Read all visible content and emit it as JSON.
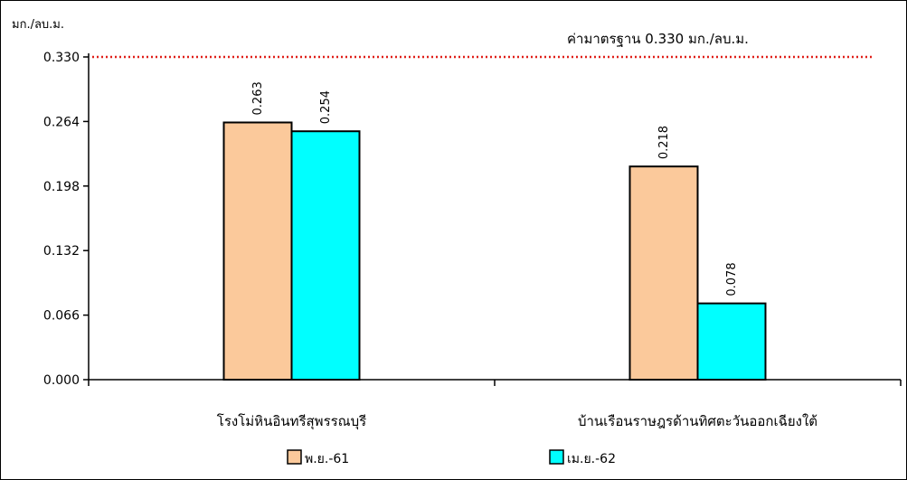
{
  "chart_data": {
    "type": "bar",
    "ylabel": "มก./ลบ.ม.",
    "categories": [
      "โรงโม่หินอินทรีสุพรรณบุรี",
      "บ้านเรือนราษฎรด้านทิศตะวันออกเฉียงใต้"
    ],
    "series": [
      {
        "name": "พ.ย.-61",
        "values": [
          0.263,
          0.218
        ],
        "color": "#FBC99B"
      },
      {
        "name": "เม.ย.-62",
        "values": [
          0.254,
          0.078
        ],
        "color": "#00FFFF"
      }
    ],
    "data_labels": [
      [
        "0.263",
        "0.218"
      ],
      [
        "0.254",
        "0.078"
      ]
    ],
    "ylim": [
      0,
      0.33
    ],
    "yticks": [
      {
        "value": 0,
        "label": "0.000"
      },
      {
        "value": 0.066,
        "label": "0.066"
      },
      {
        "value": 0.132,
        "label": "0.132"
      },
      {
        "value": 0.198,
        "label": "0.198"
      },
      {
        "value": 0.264,
        "label": "0.264"
      },
      {
        "value": 0.33,
        "label": "0.330"
      }
    ],
    "reference_line": {
      "value": 0.33,
      "label": "ค่ามาตรฐาน 0.330 มก./ลบ.ม.",
      "color": "#E0201A",
      "style": "dotted"
    },
    "grid": false,
    "legend_position": "bottom"
  }
}
